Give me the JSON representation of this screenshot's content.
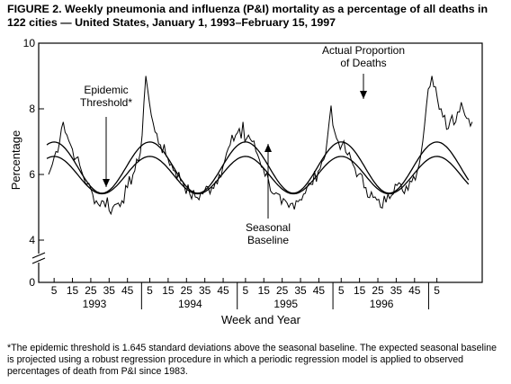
{
  "chart_data": {
    "type": "line",
    "title": "FIGURE 2. Weekly pneumonia and influenza (P&I) mortality as a percentage of all deaths in 122 cities — United States, January 1, 1993–February 15, 1997",
    "xlabel": "Week and Year",
    "ylabel": "Percentage",
    "ylim": [
      0,
      10
    ],
    "yticks": [
      0,
      4,
      6,
      8,
      10
    ],
    "y_axis_break": true,
    "x_tick_labels": [
      "5",
      "15",
      "25",
      "35",
      "45",
      "5",
      "15",
      "25",
      "35",
      "45",
      "5",
      "15",
      "25",
      "35",
      "45",
      "5",
      "15",
      "25",
      "35",
      "45",
      "5"
    ],
    "year_labels": [
      "1993",
      "1994",
      "1995",
      "1996"
    ],
    "grid": false,
    "series": [
      {
        "name": "Actual Proportion of Deaths",
        "x_week_index": [
          1,
          3,
          5,
          7,
          8,
          9,
          11,
          13,
          16,
          19,
          22,
          25,
          28,
          30,
          32,
          33,
          34,
          36,
          38,
          41,
          44,
          47,
          50,
          52,
          53,
          54,
          55,
          57,
          59,
          62,
          66,
          70,
          74,
          78,
          82,
          86,
          90,
          94,
          97,
          100,
          103,
          105,
          106,
          107,
          108,
          110,
          112,
          115,
          118,
          121,
          124,
          128,
          132,
          136,
          140,
          144,
          148,
          152,
          153,
          154,
          155,
          156,
          157,
          158,
          159,
          161,
          164,
          167,
          170,
          174,
          178,
          182,
          186,
          190,
          194,
          198,
          202,
          204,
          205,
          206,
          207,
          208,
          210,
          213,
          215,
          217,
          219,
          221,
          223,
          224,
          225,
          226,
          227,
          228,
          230,
          232
        ],
        "values": [
          6.0,
          6.3,
          6.7,
          7.0,
          7.4,
          7.6,
          7.2,
          6.9,
          6.5,
          6.1,
          5.7,
          5.4,
          5.1,
          5.2,
          5.0,
          5.3,
          4.9,
          5.0,
          5.1,
          5.2,
          5.6,
          6.0,
          6.4,
          7.2,
          8.2,
          9.0,
          8.6,
          7.8,
          7.3,
          6.9,
          6.5,
          6.1,
          5.8,
          5.4,
          5.3,
          5.5,
          5.6,
          6.0,
          6.4,
          6.9,
          7.2,
          7.4,
          7.1,
          7.6,
          7.0,
          7.2,
          7.0,
          6.6,
          6.2,
          5.8,
          5.4,
          5.1,
          5.0,
          5.2,
          5.4,
          5.7,
          6.1,
          6.6,
          7.1,
          7.6,
          8.1,
          7.5,
          7.3,
          7.1,
          7.0,
          6.9,
          6.6,
          6.3,
          6.0,
          5.6,
          5.3,
          5.0,
          5.4,
          5.7,
          5.5,
          5.8,
          6.1,
          6.6,
          7.0,
          7.5,
          8.1,
          8.6,
          9.0,
          8.3,
          8.0,
          7.8,
          7.4,
          7.8,
          7.6,
          7.9,
          7.9,
          8.2,
          8.0,
          7.8,
          7.7,
          7.6
        ]
      }
    ],
    "curves": [
      {
        "name": "Epidemic Threshold",
        "type": "sinusoid",
        "mean": 6.21,
        "amplitude": 0.78,
        "peak_week": 4,
        "period_weeks": 52.18
      },
      {
        "name": "Seasonal Baseline",
        "type": "sinusoid",
        "mean": 5.98,
        "amplitude": 0.57,
        "peak_week": 4,
        "period_weeks": 52.18
      }
    ],
    "annotations": [
      {
        "id": "threshold",
        "lines": [
          "Epidemic",
          "Threshold*"
        ]
      },
      {
        "id": "actual",
        "lines": [
          "Actual Proportion",
          "of Deaths"
        ]
      },
      {
        "id": "baseline",
        "lines": [
          "Seasonal",
          "Baseline"
        ]
      }
    ],
    "footnote": "*The epidemic threshold is 1.645 standard deviations above the seasonal baseline. The expected seasonal baseline is projected using a robust regression procedure in which a periodic regression model is applied to observed percentages of death from P&I since 1983."
  }
}
